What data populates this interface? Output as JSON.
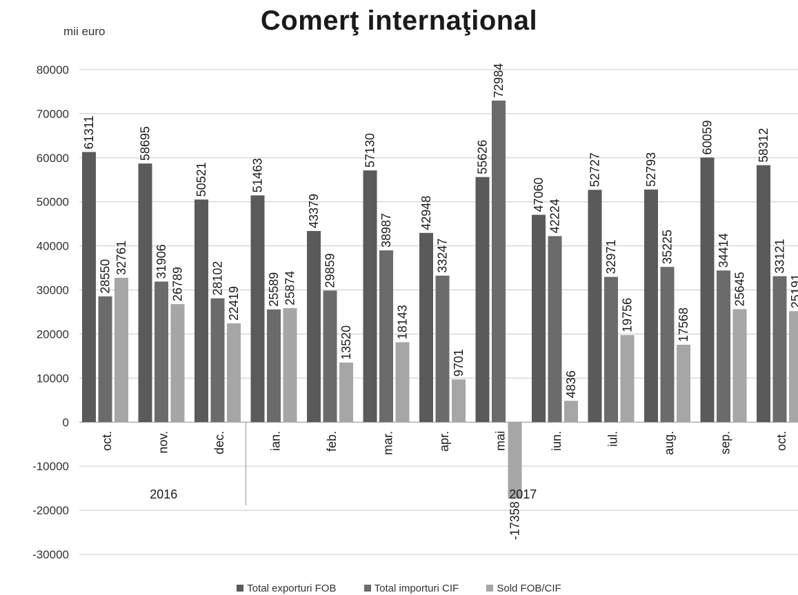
{
  "unit_label": "mii euro",
  "colors": {
    "exports": "#5a5a5a",
    "imports": "#6b6b6b",
    "balance": "#a6a6a6",
    "grid": "#c8c8c8"
  },
  "chart_data": {
    "type": "bar",
    "title": "Comerţ internaţional",
    "ylabel": "mii euro",
    "ylim": [
      -30000,
      80000
    ],
    "yticks": [
      -30000,
      -20000,
      -10000,
      0,
      10000,
      20000,
      30000,
      40000,
      50000,
      60000,
      70000,
      80000
    ],
    "grid": true,
    "legend_position": "bottom",
    "categories": [
      "oct.",
      "nov.",
      "dec.",
      "ian.",
      "feb.",
      "mar.",
      "apr.",
      "mai",
      "iun.",
      "iul.",
      "aug.",
      "sep.",
      "oct."
    ],
    "year_groups": [
      {
        "label": "2016",
        "count": 3
      },
      {
        "label": "2017",
        "count": 10
      }
    ],
    "series": [
      {
        "name": "Total exporturi FOB",
        "values": [
          61311,
          58695,
          50521,
          51463,
          43379,
          57130,
          42948,
          55626,
          47060,
          52727,
          52793,
          60059,
          58312
        ]
      },
      {
        "name": "Total importuri CIF",
        "values": [
          28550,
          31906,
          28102,
          25589,
          29859,
          38987,
          33247,
          72984,
          42224,
          32971,
          35225,
          34414,
          33121
        ]
      },
      {
        "name": "Sold FOB/CIF",
        "values": [
          32761,
          26789,
          22419,
          25874,
          13520,
          18143,
          9701,
          -17358,
          4836,
          19756,
          17568,
          25645,
          25191
        ]
      }
    ]
  }
}
